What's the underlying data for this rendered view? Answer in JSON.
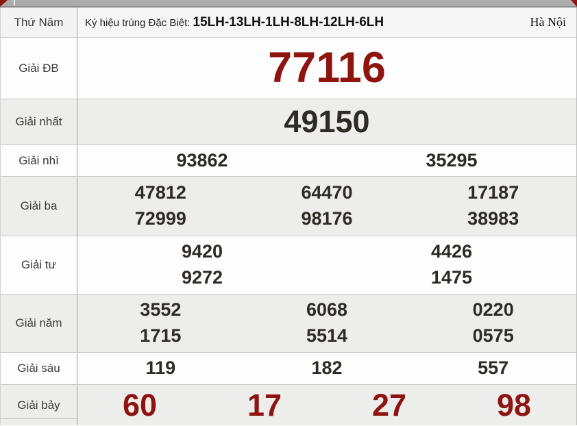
{
  "colors": {
    "special_number": "#8e1410",
    "normal_number": "#2e2b26",
    "row_bg": "#fdfdfd",
    "row_alt_bg": "#ededeb",
    "top_band": "#acacac"
  },
  "header": {
    "day": "Thứ Năm",
    "special_sign_label": "Ký hiệu trúng Đặc Biệt:",
    "special_sign_value": "15LH-13LH-1LH-8LH-12LH-6LH",
    "region": "Hà Nội"
  },
  "prizes": [
    {
      "id": "db",
      "label": "Giải ĐB",
      "emphasis": "special",
      "size": "xl",
      "lines": [
        [
          "77116"
        ]
      ]
    },
    {
      "id": "nhat",
      "label": "Giải nhất",
      "emphasis": "normal",
      "size": "lg",
      "lines": [
        [
          "49150"
        ]
      ]
    },
    {
      "id": "nhi",
      "label": "Giải nhì",
      "emphasis": "normal",
      "size": "md",
      "lines": [
        [
          "93862",
          "35295"
        ]
      ]
    },
    {
      "id": "ba",
      "label": "Giải ba",
      "emphasis": "normal",
      "size": "md",
      "lines": [
        [
          "47812",
          "64470",
          "17187"
        ],
        [
          "72999",
          "98176",
          "38983"
        ]
      ]
    },
    {
      "id": "tu",
      "label": "Giải tư",
      "emphasis": "normal",
      "size": "md",
      "lines": [
        [
          "9420",
          "4426"
        ],
        [
          "9272",
          "1475"
        ]
      ]
    },
    {
      "id": "nam",
      "label": "Giải năm",
      "emphasis": "normal",
      "size": "md",
      "lines": [
        [
          "3552",
          "6068",
          "0220"
        ],
        [
          "1715",
          "5514",
          "0575"
        ]
      ]
    },
    {
      "id": "sau",
      "label": "Giải sáu",
      "emphasis": "normal",
      "size": "md",
      "lines": [
        [
          "119",
          "182",
          "557"
        ]
      ]
    },
    {
      "id": "bay",
      "label": "Giải bảy",
      "emphasis": "special",
      "size": "lg",
      "lines": [
        [
          "60",
          "17",
          "27",
          "98"
        ]
      ]
    }
  ]
}
